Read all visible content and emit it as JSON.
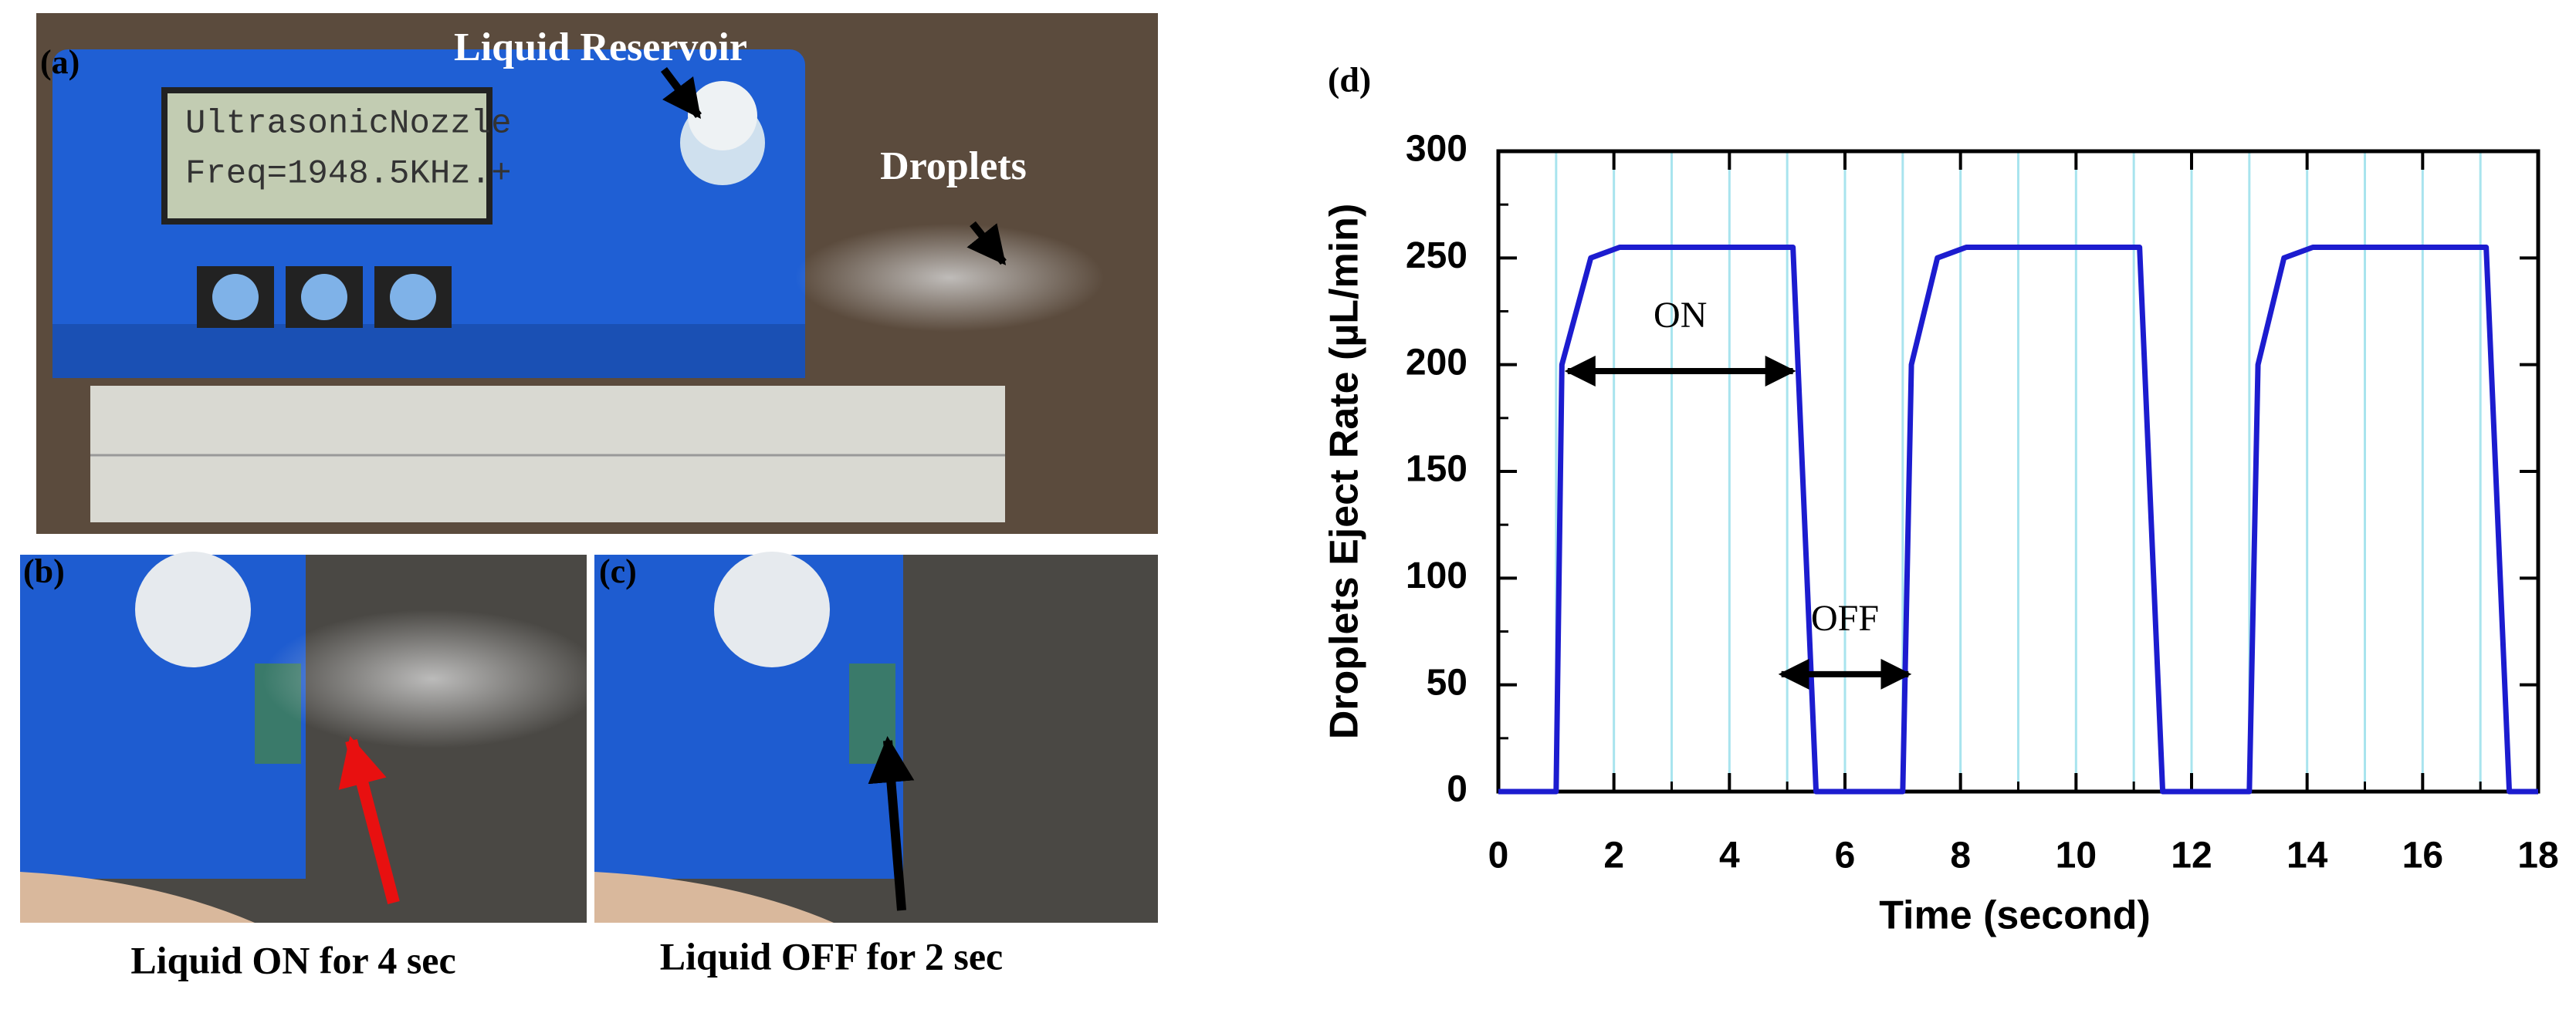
{
  "panels": [
    {
      "label": "(a)",
      "screen": [
        "UltrasonicNozzle",
        "Freq=1948.5KHz.+"
      ],
      "notes": [
        "Liquid Reservoir",
        "Droplets"
      ]
    },
    {
      "label": "(b)",
      "caption": "Liquid ON for 4 sec"
    },
    {
      "label": "(c)",
      "caption": "Liquid OFF for 2 sec"
    }
  ],
  "chart_data": {
    "type": "line",
    "label": "(d)",
    "x_label": "Time (second)",
    "y_label": "Droplets Eject Rate (µL/min)",
    "x": [
      0,
      1,
      1.1,
      1.6,
      2.1,
      5.1,
      5.5,
      7.0,
      7.15,
      7.6,
      8.1,
      11.1,
      11.5,
      13.0,
      13.15,
      13.6,
      14.1,
      17.1,
      17.5,
      18
    ],
    "values": [
      0,
      0,
      200,
      250,
      255,
      255,
      0,
      0,
      200,
      250,
      255,
      255,
      0,
      0,
      200,
      250,
      255,
      255,
      0,
      0
    ],
    "color": "#1c1ccf",
    "xlim": [
      0,
      18
    ],
    "ylim": [
      0,
      300
    ],
    "xticks": [
      0,
      2,
      4,
      6,
      8,
      10,
      12,
      14,
      16,
      18
    ],
    "xminorticks": [
      1,
      3,
      5,
      7,
      9,
      11,
      13,
      15,
      17
    ],
    "yticks": [
      0,
      50,
      100,
      150,
      200,
      250,
      300
    ],
    "yminorticks": [
      25,
      75,
      125,
      175,
      225,
      275
    ],
    "grid": true,
    "grid_color": "#a8e4ee",
    "annotations": [
      {
        "text": "ON",
        "start": 1.2,
        "end": 5.1,
        "y": 197
      },
      {
        "text": "OFF",
        "start": 4.9,
        "end": 7.1,
        "y": 55
      }
    ]
  }
}
